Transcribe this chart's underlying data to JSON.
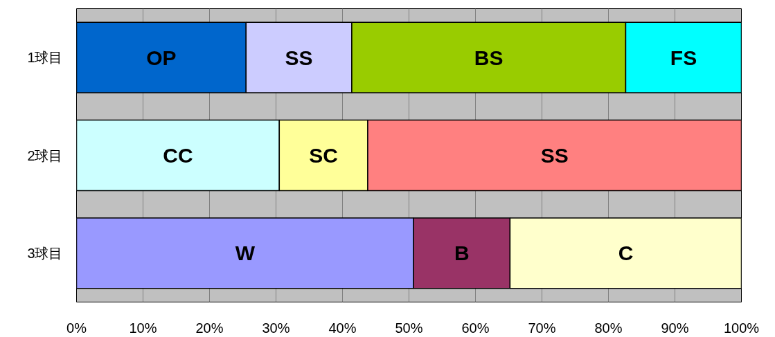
{
  "chart_data": {
    "type": "bar",
    "orientation": "horizontal",
    "stacked": true,
    "categories": [
      "1球目",
      "2球目",
      "3球目"
    ],
    "series": [
      {
        "name": "OP",
        "color": "#0066cc",
        "values": [
          25.5,
          null,
          null
        ]
      },
      {
        "name": "SS",
        "color": "#ccccff",
        "values": [
          15.9,
          null,
          null
        ]
      },
      {
        "name": "BS",
        "color": "#99cc00",
        "values": [
          41.2,
          null,
          null
        ]
      },
      {
        "name": "FS",
        "color": "#00ffff",
        "values": [
          17.4,
          null,
          null
        ]
      },
      {
        "name": "CC",
        "color": "#ccffff",
        "values": [
          null,
          30.5,
          null
        ]
      },
      {
        "name": "SC",
        "color": "#ffff99",
        "values": [
          null,
          13.3,
          null
        ]
      },
      {
        "name": "SS",
        "color": "#ff8080",
        "values": [
          null,
          56.2,
          null
        ]
      },
      {
        "name": "W",
        "color": "#9999ff",
        "values": [
          null,
          null,
          50.7
        ]
      },
      {
        "name": "B",
        "color": "#993366",
        "values": [
          null,
          null,
          14.5
        ]
      },
      {
        "name": "C",
        "color": "#ffffcc",
        "values": [
          null,
          null,
          34.8
        ]
      }
    ],
    "xlim": [
      0,
      100
    ],
    "xticks": [
      {
        "value": 0,
        "label": "0%"
      },
      {
        "value": 10,
        "label": "10%"
      },
      {
        "value": 20,
        "label": "20%"
      },
      {
        "value": 30,
        "label": "30%"
      },
      {
        "value": 40,
        "label": "40%"
      },
      {
        "value": 50,
        "label": "50%"
      },
      {
        "value": 60,
        "label": "60%"
      },
      {
        "value": 70,
        "label": "70%"
      },
      {
        "value": 80,
        "label": "80%"
      },
      {
        "value": 90,
        "label": "90%"
      },
      {
        "value": 100,
        "label": "100%"
      }
    ],
    "grid": "x",
    "legend": false
  }
}
